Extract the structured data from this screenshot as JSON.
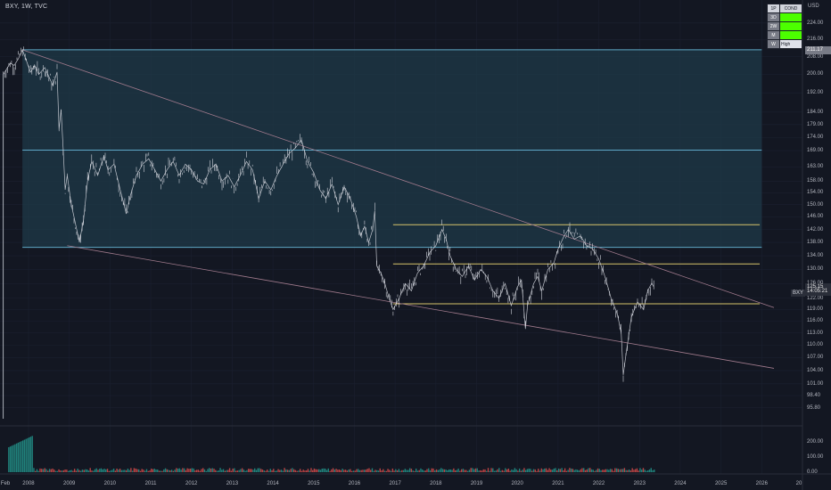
{
  "header": {
    "symbol_line": "BXY, 1W, TVC",
    "currency": "USD"
  },
  "chart_data": {
    "type": "line",
    "series": [
      {
        "values": []
      }
    ],
    "ylim": [
      93.5,
      232
    ],
    "x_range": [
      2007.3,
      2027.0
    ],
    "price_axis_ticks": [
      "224.00",
      "216.00",
      "208.00",
      "200.00",
      "192.00",
      "184.00",
      "179.00",
      "174.00",
      "169.00",
      "163.00",
      "158.00",
      "154.00",
      "150.00",
      "146.00",
      "142.00",
      "138.00",
      "134.00",
      "130.00",
      "126.00",
      "122.00",
      "119.00",
      "116.00",
      "113.00",
      "110.00",
      "107.00",
      "104.00",
      "101.00",
      "98.40",
      "95.80"
    ],
    "volume_axis_ticks": [
      "200.00",
      "100.00",
      "0.00"
    ],
    "time_axis_ticks": [
      "Feb",
      "2008",
      "2009",
      "2010",
      "2011",
      "2012",
      "2013",
      "2014",
      "2015",
      "2016",
      "2017",
      "2018",
      "2019",
      "2020",
      "2021",
      "2022",
      "2023",
      "2024",
      "2025",
      "2026",
      "20"
    ],
    "price_path": [
      [
        2007.38,
        200
      ],
      [
        2007.45,
        202
      ],
      [
        2007.55,
        205
      ],
      [
        2007.65,
        204
      ],
      [
        2007.75,
        207
      ],
      [
        2007.85,
        211.17
      ],
      [
        2007.95,
        206
      ],
      [
        2008.05,
        201
      ],
      [
        2008.15,
        204
      ],
      [
        2008.25,
        200
      ],
      [
        2008.4,
        203
      ],
      [
        2008.5,
        199
      ],
      [
        2008.6,
        195
      ],
      [
        2008.7,
        201
      ],
      [
        2008.75,
        177
      ],
      [
        2008.8,
        185
      ],
      [
        2008.85,
        170
      ],
      [
        2008.9,
        155
      ],
      [
        2008.95,
        160
      ],
      [
        2009.05,
        150
      ],
      [
        2009.15,
        144
      ],
      [
        2009.25,
        138
      ],
      [
        2009.35,
        145
      ],
      [
        2009.45,
        158
      ],
      [
        2009.55,
        165
      ],
      [
        2009.7,
        160
      ],
      [
        2009.85,
        167
      ],
      [
        2009.95,
        162
      ],
      [
        2010.1,
        164
      ],
      [
        2010.25,
        155
      ],
      [
        2010.4,
        147
      ],
      [
        2010.5,
        153
      ],
      [
        2010.65,
        160
      ],
      [
        2010.8,
        164
      ],
      [
        2010.95,
        166
      ],
      [
        2011.1,
        162
      ],
      [
        2011.25,
        158
      ],
      [
        2011.4,
        162
      ],
      [
        2011.55,
        165
      ],
      [
        2011.7,
        160
      ],
      [
        2011.85,
        164
      ],
      [
        2012.0,
        162
      ],
      [
        2012.15,
        158
      ],
      [
        2012.3,
        157
      ],
      [
        2012.45,
        162
      ],
      [
        2012.6,
        164
      ],
      [
        2012.75,
        158
      ],
      [
        2012.9,
        160
      ],
      [
        2013.05,
        156
      ],
      [
        2013.2,
        160
      ],
      [
        2013.35,
        165
      ],
      [
        2013.5,
        162
      ],
      [
        2013.65,
        152
      ],
      [
        2013.8,
        158
      ],
      [
        2013.95,
        155
      ],
      [
        2014.1,
        160
      ],
      [
        2014.25,
        164
      ],
      [
        2014.4,
        168
      ],
      [
        2014.55,
        170
      ],
      [
        2014.7,
        173
      ],
      [
        2014.85,
        165
      ],
      [
        2015.0,
        161
      ],
      [
        2015.15,
        155
      ],
      [
        2015.3,
        152
      ],
      [
        2015.45,
        157
      ],
      [
        2015.6,
        150
      ],
      [
        2015.75,
        156
      ],
      [
        2015.9,
        152
      ],
      [
        2016.05,
        146
      ],
      [
        2016.15,
        140
      ],
      [
        2016.25,
        143
      ],
      [
        2016.35,
        138
      ],
      [
        2016.45,
        142
      ],
      [
        2016.5,
        148
      ],
      [
        2016.55,
        131
      ],
      [
        2016.65,
        129
      ],
      [
        2016.75,
        126
      ],
      [
        2016.85,
        122
      ],
      [
        2016.95,
        119
      ],
      [
        2017.1,
        122
      ],
      [
        2017.25,
        126
      ],
      [
        2017.4,
        124
      ],
      [
        2017.55,
        129
      ],
      [
        2017.7,
        131
      ],
      [
        2017.85,
        135
      ],
      [
        2018.0,
        137
      ],
      [
        2018.15,
        142
      ],
      [
        2018.25,
        139
      ],
      [
        2018.35,
        134
      ],
      [
        2018.5,
        130
      ],
      [
        2018.65,
        128
      ],
      [
        2018.8,
        131
      ],
      [
        2018.95,
        127
      ],
      [
        2019.1,
        130
      ],
      [
        2019.25,
        128
      ],
      [
        2019.4,
        124
      ],
      [
        2019.55,
        122
      ],
      [
        2019.7,
        126
      ],
      [
        2019.85,
        120
      ],
      [
        2020.0,
        125
      ],
      [
        2020.1,
        127
      ],
      [
        2020.2,
        114
      ],
      [
        2020.25,
        120
      ],
      [
        2020.4,
        126
      ],
      [
        2020.5,
        128
      ],
      [
        2020.6,
        124
      ],
      [
        2020.75,
        130
      ],
      [
        2020.9,
        132
      ],
      [
        2021.0,
        136
      ],
      [
        2021.15,
        140
      ],
      [
        2021.25,
        142
      ],
      [
        2021.4,
        139
      ],
      [
        2021.55,
        140
      ],
      [
        2021.7,
        137
      ],
      [
        2021.85,
        136
      ],
      [
        2022.0,
        133
      ],
      [
        2022.15,
        128
      ],
      [
        2022.3,
        122
      ],
      [
        2022.45,
        118
      ],
      [
        2022.55,
        113
      ],
      [
        2022.6,
        103
      ],
      [
        2022.7,
        110
      ],
      [
        2022.8,
        117
      ],
      [
        2022.95,
        121
      ],
      [
        2023.1,
        119
      ],
      [
        2023.2,
        124
      ],
      [
        2023.3,
        126.1
      ],
      [
        2023.35,
        125.1
      ]
    ],
    "volume": {
      "values": [],
      "colors": {
        "up": "#26a69a",
        "down": "#ef5350"
      }
    },
    "horizontal_levels": [
      {
        "price": 211.17,
        "color": "#5fa8c6",
        "x_from": 2007.85,
        "x_to": 2026.0
      },
      {
        "price": 169.2,
        "color": "#5fa8c6",
        "x_from": 2007.85,
        "x_to": 2026.0
      },
      {
        "price": 136.5,
        "color": "#5fa8c6",
        "x_from": 2007.85,
        "x_to": 2026.0
      },
      {
        "price": 143.5,
        "color": "#d6c36a",
        "x_from": 2016.95,
        "x_to": 2025.95
      },
      {
        "price": 131.6,
        "color": "#d6c36a",
        "x_from": 2016.95,
        "x_to": 2025.95
      },
      {
        "price": 120.5,
        "color": "#d6c36a",
        "x_from": 2016.95,
        "x_to": 2025.95
      }
    ],
    "box": {
      "price_from": 136.5,
      "price_to": 211.17,
      "x_from": 2007.85,
      "x_to": 2026.0,
      "fill": "#1f3a48"
    },
    "trend_lines": [
      {
        "from": [
          2007.85,
          211.17
        ],
        "to": [
          2026.3,
          119.5
        ],
        "color": "#a07a8c"
      },
      {
        "from": [
          2008.95,
          137.0
        ],
        "to": [
          2026.3,
          104.5
        ],
        "color": "#a07a8c"
      }
    ],
    "price_labels": [
      {
        "text": "211.17",
        "price": 211.17,
        "style": "gray"
      },
      {
        "text": "125.15",
        "price": 125.15,
        "style": "dark"
      },
      {
        "text": "14:05:21",
        "price": 123.9,
        "style": "dark"
      }
    ],
    "series_tag": "BXY",
    "colors": {
      "background": "#131722",
      "price_line": "#d1d4dc",
      "grid": "#1b2030"
    }
  },
  "side_table": {
    "header": [
      "1P",
      "COND"
    ],
    "rows": [
      [
        "3D",
        ""
      ],
      [
        "2W",
        ""
      ],
      [
        "M",
        ""
      ],
      [
        "W",
        "High"
      ]
    ]
  }
}
